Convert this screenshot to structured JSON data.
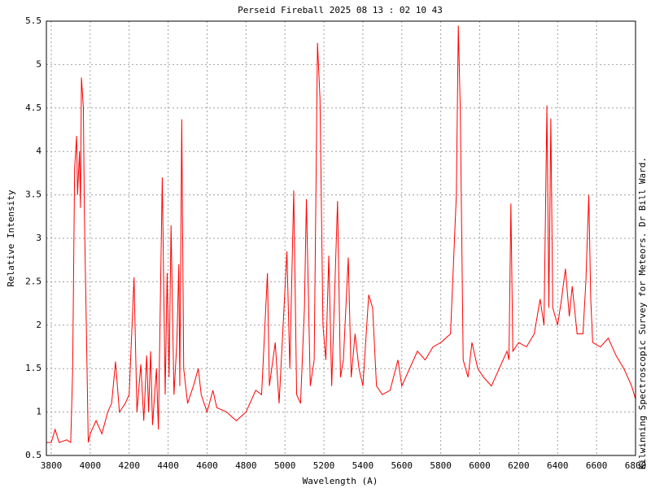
{
  "chart_data": {
    "type": "line",
    "title": "Perseid Fireball 2025 08 13 : 02 10 43",
    "x_label": "Wavelength (A)",
    "y_label": "Relative Intensity",
    "side_note": "Kilwinning Spectroscopic Survey for Meteors. Dr Bill Ward.",
    "x": [
      3775,
      3800,
      3820,
      3840,
      3880,
      3900,
      3910,
      3920,
      3930,
      3935,
      3945,
      3950,
      3955,
      3965,
      3970,
      3980,
      3990,
      4000,
      4030,
      4060,
      4090,
      4110,
      4130,
      4150,
      4180,
      4200,
      4225,
      4240,
      4260,
      4275,
      4290,
      4300,
      4310,
      4320,
      4340,
      4350,
      4370,
      4385,
      4395,
      4405,
      4415,
      4430,
      4445,
      4455,
      4460,
      4470,
      4480,
      4500,
      4530,
      4555,
      4570,
      4600,
      4630,
      4650,
      4700,
      4750,
      4800,
      4850,
      4880,
      4910,
      4920,
      4950,
      4970,
      5010,
      5025,
      5045,
      5060,
      5080,
      5100,
      5110,
      5130,
      5150,
      5167,
      5180,
      5195,
      5210,
      5225,
      5240,
      5270,
      5285,
      5300,
      5325,
      5340,
      5360,
      5380,
      5400,
      5430,
      5450,
      5470,
      5500,
      5540,
      5580,
      5600,
      5640,
      5680,
      5720,
      5760,
      5800,
      5850,
      5880,
      5890,
      5900,
      5915,
      5940,
      5960,
      5990,
      6020,
      6060,
      6100,
      6140,
      6150,
      6160,
      6170,
      6200,
      6240,
      6280,
      6310,
      6330,
      6345,
      6355,
      6365,
      6375,
      6400,
      6420,
      6440,
      6460,
      6475,
      6500,
      6530,
      6545,
      6560,
      6570,
      6580,
      6620,
      6660,
      6700,
      6740,
      6780,
      6800
    ],
    "series": [
      {
        "name": "Spectrum",
        "color": "#ff0000",
        "values": [
          0.65,
          0.65,
          0.8,
          0.65,
          0.68,
          0.65,
          1.5,
          3.8,
          4.18,
          3.5,
          4.0,
          3.35,
          4.85,
          4.5,
          3.3,
          2.0,
          0.65,
          0.75,
          0.9,
          0.75,
          1.0,
          1.1,
          1.58,
          1.0,
          1.1,
          1.2,
          2.55,
          1.0,
          1.55,
          0.9,
          1.65,
          1.0,
          1.7,
          0.85,
          1.5,
          0.8,
          3.7,
          1.2,
          2.6,
          1.4,
          3.15,
          1.2,
          1.8,
          2.7,
          1.3,
          4.37,
          1.5,
          1.1,
          1.3,
          1.5,
          1.2,
          1.0,
          1.25,
          1.05,
          1.0,
          0.9,
          1.0,
          1.25,
          1.2,
          2.6,
          1.3,
          1.8,
          1.1,
          2.85,
          1.5,
          3.55,
          1.2,
          1.1,
          2.2,
          3.45,
          1.3,
          1.6,
          5.25,
          4.6,
          2.0,
          1.6,
          2.8,
          1.3,
          3.43,
          1.4,
          1.6,
          2.78,
          1.4,
          1.9,
          1.5,
          1.3,
          2.35,
          2.2,
          1.3,
          1.2,
          1.25,
          1.6,
          1.3,
          1.5,
          1.7,
          1.6,
          1.75,
          1.8,
          1.9,
          3.5,
          5.45,
          4.5,
          1.6,
          1.4,
          1.8,
          1.5,
          1.4,
          1.3,
          1.5,
          1.7,
          1.6,
          3.4,
          1.7,
          1.8,
          1.75,
          1.9,
          2.3,
          2.0,
          4.53,
          2.2,
          4.38,
          2.2,
          2.0,
          2.3,
          2.65,
          2.1,
          2.45,
          1.9,
          1.9,
          2.5,
          3.5,
          2.3,
          1.8,
          1.75,
          1.85,
          1.65,
          1.5,
          1.3,
          1.15
        ]
      }
    ],
    "xlim": [
      3775,
      6800
    ],
    "ylim": [
      0.5,
      5.5
    ],
    "xticks": [
      3800,
      4000,
      4200,
      4400,
      4600,
      4800,
      5000,
      5200,
      5400,
      5600,
      5800,
      6000,
      6200,
      6400,
      6600,
      6800
    ],
    "yticks": [
      0.5,
      1,
      1.5,
      2,
      2.5,
      3,
      3.5,
      4,
      4.5,
      5,
      5.5
    ],
    "grid": true
  }
}
